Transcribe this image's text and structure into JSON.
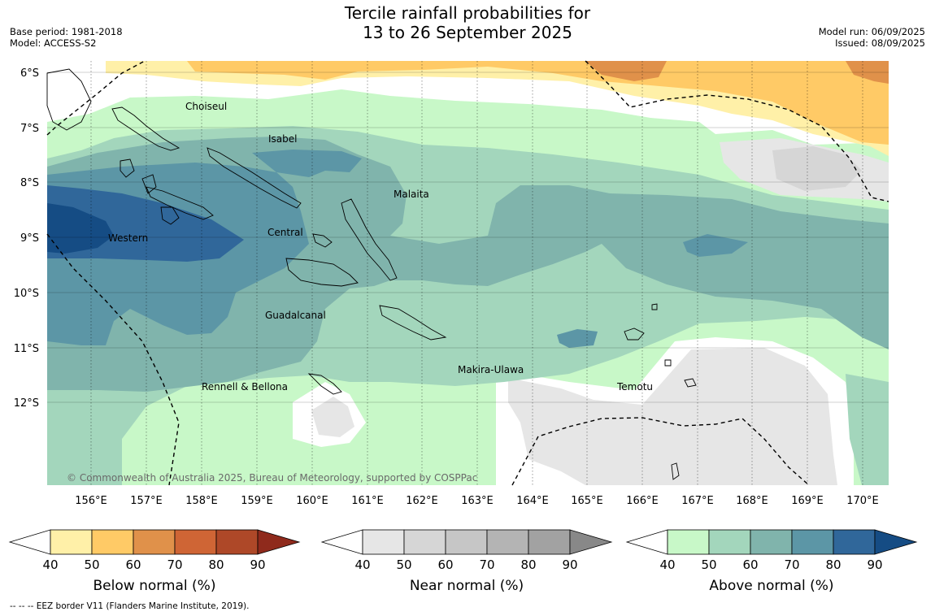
{
  "title_line1": "Tercile rainfall probabilities for",
  "title_line2": "13 to 26 September 2025",
  "base_period": "Base period: 1981-2018",
  "model": "Model: ACCESS-S2",
  "model_run": "Model run: 06/09/2025",
  "issued": "Issued: 08/09/2025",
  "copyright": "© Commonwealth of Australia 2025, Bureau of Meteorology, supported by COSPPac",
  "lat_labels": [
    "6°S",
    "7°S",
    "8°S",
    "9°S",
    "10°S",
    "11°S",
    "12°S"
  ],
  "lon_labels": [
    "156°E",
    "157°E",
    "158°E",
    "159°E",
    "160°E",
    "161°E",
    "162°E",
    "163°E",
    "164°E",
    "165°E",
    "166°E",
    "167°E",
    "168°E",
    "169°E",
    "170°E"
  ],
  "provinces": [
    "Choiseul",
    "Isabel",
    "Malaita",
    "Western",
    "Central",
    "Guadalcanal",
    "Makira-Ulawa",
    "Rennell & Bellona",
    "Temotu"
  ],
  "colorbars": [
    {
      "title": "Below normal (%)",
      "ticks": [
        "40",
        "50",
        "60",
        "70",
        "80",
        "90"
      ],
      "colors": [
        "#fff0a8",
        "#ffca66",
        "#e0914a",
        "#cf6535",
        "#ae4828",
        "#8f2a1c"
      ]
    },
    {
      "title": "Near normal (%)",
      "ticks": [
        "40",
        "50",
        "60",
        "70",
        "80",
        "90"
      ],
      "colors": [
        "#e6e6e6",
        "#d6d6d6",
        "#c6c6c6",
        "#b4b4b4",
        "#a2a2a2",
        "#888888"
      ]
    },
    {
      "title": "Above normal (%)",
      "ticks": [
        "40",
        "50",
        "60",
        "70",
        "80",
        "90"
      ],
      "colors": [
        "#c8f8c8",
        "#a3d6bc",
        "#80b4ac",
        "#5c96a6",
        "#30679a",
        "#154c84"
      ]
    }
  ],
  "footnote": "--  --  -- EEZ border V11 (Flanders Marine Institute, 2019)."
}
